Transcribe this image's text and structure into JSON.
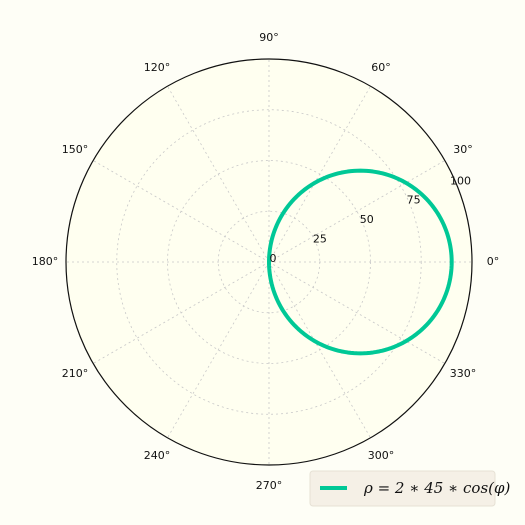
{
  "chart_data": {
    "type": "line",
    "projection": "polar",
    "series": [
      {
        "name": "ρ = 2 ∗ 45 ∗ cos(φ)",
        "formula": "rho = 2*45*cos(phi)",
        "amplitude": 45,
        "theta_range_deg": [
          -90,
          90
        ],
        "color": "#00c896"
      }
    ],
    "theta_ticks": [
      "0°",
      "30°",
      "60°",
      "90°",
      "120°",
      "150°",
      "180°",
      "210°",
      "240°",
      "270°",
      "300°",
      "330°"
    ],
    "theta_tick_values": [
      0,
      30,
      60,
      90,
      120,
      150,
      180,
      210,
      240,
      270,
      300,
      330
    ],
    "r_ticks": [
      0,
      25,
      50,
      75,
      100
    ],
    "r_tick_labels": [
      "0",
      "25",
      "50",
      "75",
      "100"
    ],
    "rlim": [
      0,
      100
    ],
    "r_label_angle_deg": 22.5,
    "grid": true,
    "legend_placement": "lower-right",
    "title": "",
    "colors": {
      "page_background": "#fefef6",
      "plot_background": "#fffff0",
      "grid": "#c8c8c8",
      "frame": "#111111",
      "legend_background": "#f5f0e6"
    }
  }
}
